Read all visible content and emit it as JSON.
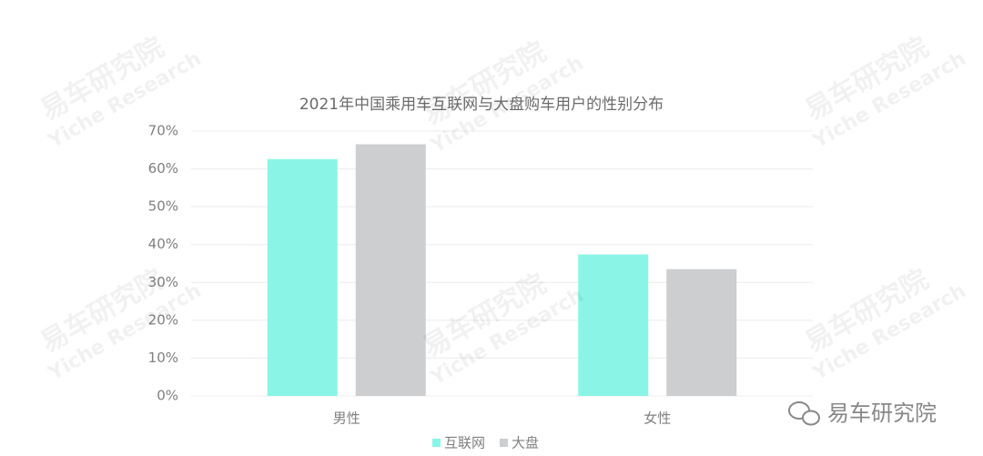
{
  "chart_data": {
    "type": "bar",
    "title": "2021年中国乘用车互联网与大盘购车用户的性别分布",
    "categories": [
      "男性",
      "女性"
    ],
    "series": [
      {
        "name": "互联网",
        "color": "#8af5e6",
        "values": [
          62.6,
          37.4
        ]
      },
      {
        "name": "大盘",
        "color": "#ccced0",
        "values": [
          66.5,
          33.5
        ]
      }
    ],
    "ylim": [
      0,
      70
    ],
    "yticks": [
      {
        "value": 0,
        "label": "0%"
      },
      {
        "value": 10,
        "label": "10%"
      },
      {
        "value": 20,
        "label": "20%"
      },
      {
        "value": 30,
        "label": "30%"
      },
      {
        "value": 40,
        "label": "40%"
      },
      {
        "value": 50,
        "label": "50%"
      },
      {
        "value": 60,
        "label": "60%"
      },
      {
        "value": 70,
        "label": "70%"
      }
    ],
    "grid": true,
    "legend": "bottom"
  },
  "watermark": {
    "name": "易车研究院",
    "english": "Yiche Research"
  },
  "logo": "易车研究院"
}
